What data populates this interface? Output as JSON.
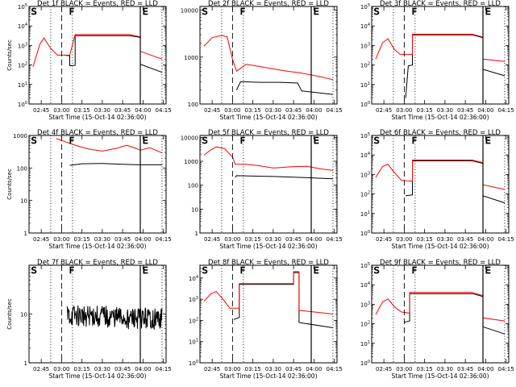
{
  "chart_data": [
    {
      "type": "line",
      "title": "Det 1f BLACK = Events, RED = LLD",
      "ylabel": "Counts/sec",
      "xlabel": "Start Time (15-Oct-14 02:36:00)",
      "x_ticks": [
        "02:45",
        "03:00",
        "03:15",
        "03:30",
        "03:45",
        "04:00",
        "04:15"
      ],
      "y_ticks": [
        "10^0",
        "10^1",
        "10^2",
        "10^3",
        "10^4",
        "10^5"
      ],
      "ylim": [
        1,
        100000
      ],
      "y_scale": "log",
      "markers": [
        "S",
        "F",
        "E"
      ],
      "series": [
        {
          "color": "#000000",
          "points": [
            [
              "03:02",
              320
            ],
            [
              "03:06",
              300
            ],
            [
              "03:06",
              90
            ],
            [
              "03:10",
              95
            ],
            [
              "03:10",
              3200
            ],
            [
              "03:50",
              3200
            ],
            [
              "03:58",
              2600
            ],
            [
              "03:58",
              110
            ],
            [
              "04:14",
              42
            ]
          ]
        },
        {
          "color": "#ff0000",
          "points": [
            [
              "02:39",
              80
            ],
            [
              "02:44",
              1200
            ],
            [
              "02:47",
              2400
            ],
            [
              "02:52",
              700
            ],
            [
              "02:57",
              320
            ],
            [
              "03:06",
              320
            ],
            [
              "03:10",
              3600
            ],
            [
              "03:50",
              3600
            ],
            [
              "03:58",
              2800
            ],
            [
              "03:58",
              500
            ],
            [
              "04:14",
              200
            ]
          ]
        }
      ]
    },
    {
      "type": "line",
      "title": "Det 2f BLACK = Events, RED = LLD",
      "ylabel": "",
      "xlabel": "Start Time (15-Oct-14 02:36:00)",
      "x_ticks": [
        "02:45",
        "03:00",
        "03:15",
        "03:30",
        "03:45",
        "04:00",
        "04:15"
      ],
      "y_ticks": [
        "100",
        "1000",
        "10000"
      ],
      "ylim": [
        100,
        12000
      ],
      "y_scale": "log",
      "markers": [
        "S",
        "F",
        "E"
      ],
      "series": [
        {
          "color": "#000000",
          "points": [
            [
              "03:03",
              200
            ],
            [
              "03:06",
              300
            ],
            [
              "03:20",
              290
            ],
            [
              "03:35",
              290
            ],
            [
              "03:48",
              280
            ],
            [
              "03:51",
              190
            ],
            [
              "04:14",
              160
            ]
          ]
        },
        {
          "color": "#ff0000",
          "points": [
            [
              "02:39",
              1700
            ],
            [
              "02:45",
              2600
            ],
            [
              "02:52",
              2900
            ],
            [
              "02:56",
              2700
            ],
            [
              "03:00",
              900
            ],
            [
              "03:03",
              500
            ],
            [
              "03:10",
              700
            ],
            [
              "03:20",
              630
            ],
            [
              "03:30",
              560
            ],
            [
              "03:40",
              500
            ],
            [
              "03:50",
              460
            ],
            [
              "04:05",
              380
            ],
            [
              "04:14",
              330
            ]
          ]
        }
      ]
    },
    {
      "type": "line",
      "title": "Det 3f BLACK = Events, RED = LLD",
      "ylabel": "",
      "xlabel": "Start Time (15-Oct-14 02:36:00)",
      "x_ticks": [
        "02:45",
        "03:00",
        "03:15",
        "03:30",
        "03:45",
        "04:00",
        "04:15"
      ],
      "y_ticks": [
        "10^0",
        "10^1",
        "10^2",
        "10^3",
        "10^4",
        "10^5"
      ],
      "ylim": [
        1,
        100000
      ],
      "y_scale": "log",
      "markers": [
        "S",
        "F",
        "E"
      ],
      "series": [
        {
          "color": "#000000",
          "points": [
            [
              "03:01",
              2
            ],
            [
              "03:03",
              90
            ],
            [
              "03:06",
              100
            ],
            [
              "03:06",
              3500
            ],
            [
              "03:50",
              3500
            ],
            [
              "03:58",
              2500
            ],
            [
              "03:58",
              60
            ],
            [
              "04:14",
              28
            ]
          ]
        },
        {
          "color": "#ff0000",
          "points": [
            [
              "02:39",
              200
            ],
            [
              "02:44",
              1400
            ],
            [
              "02:48",
              2200
            ],
            [
              "02:53",
              600
            ],
            [
              "02:57",
              350
            ],
            [
              "03:06",
              350
            ],
            [
              "03:06",
              3800
            ],
            [
              "03:50",
              3800
            ],
            [
              "03:58",
              2700
            ],
            [
              "03:58",
              200
            ],
            [
              "04:14",
              150
            ]
          ]
        }
      ]
    },
    {
      "type": "line",
      "title": "Det 4f BLACK = Events, RED = LLD",
      "ylabel": "Counts/sec",
      "xlabel": "Start Time (15-Oct-14 02:36:00)",
      "x_ticks": [
        "02:45",
        "03:00",
        "03:15",
        "03:30",
        "03:45",
        "04:00",
        "04:15"
      ],
      "y_ticks": [
        "1",
        "10",
        "100",
        "1000"
      ],
      "ylim": [
        1,
        1000
      ],
      "y_scale": "log",
      "markers": [
        "S",
        "F",
        "E"
      ],
      "series": [
        {
          "color": "#000000",
          "points": [
            [
              "03:06",
              120
            ],
            [
              "03:15",
              135
            ],
            [
              "03:30",
              138
            ],
            [
              "03:45",
              130
            ],
            [
              "03:57",
              125
            ],
            [
              "03:59",
              125
            ],
            [
              "04:14",
              125
            ]
          ]
        },
        {
          "color": "#ff0000",
          "points": [
            [
              "02:56",
              800
            ],
            [
              "03:00",
              700
            ],
            [
              "03:10",
              500
            ],
            [
              "03:20",
              380
            ],
            [
              "03:30",
              330
            ],
            [
              "03:40",
              400
            ],
            [
              "03:48",
              500
            ],
            [
              "03:55",
              400
            ],
            [
              "03:58",
              350
            ],
            [
              "04:05",
              420
            ],
            [
              "04:14",
              290
            ]
          ]
        }
      ]
    },
    {
      "type": "line",
      "title": "Det 5f BLACK = Events, RED = LLD",
      "ylabel": "",
      "xlabel": "Start Time (15-Oct-14 02:36:00)",
      "x_ticks": [
        "02:45",
        "03:00",
        "03:15",
        "03:30",
        "03:45",
        "04:00",
        "04:15"
      ],
      "y_ticks": [
        "1",
        "10",
        "100",
        "1000",
        "10000"
      ],
      "ylim": [
        1,
        12000
      ],
      "y_scale": "log",
      "markers": [
        "S",
        "F",
        "E"
      ],
      "series": [
        {
          "color": "#000000",
          "points": [
            [
              "03:02",
              210
            ],
            [
              "03:03",
              250
            ],
            [
              "03:15",
              240
            ],
            [
              "03:30",
              230
            ],
            [
              "03:45",
              215
            ],
            [
              "04:00",
              200
            ],
            [
              "04:14",
              185
            ]
          ]
        },
        {
          "color": "#ff0000",
          "points": [
            [
              "02:39",
              1800
            ],
            [
              "02:44",
              3000
            ],
            [
              "02:48",
              4000
            ],
            [
              "02:54",
              3400
            ],
            [
              "03:00",
              1500
            ],
            [
              "03:02",
              750
            ],
            [
              "03:10",
              750
            ],
            [
              "03:20",
              650
            ],
            [
              "03:30",
              520
            ],
            [
              "03:45",
              600
            ],
            [
              "03:55",
              620
            ],
            [
              "04:05",
              480
            ],
            [
              "04:14",
              420
            ]
          ]
        }
      ]
    },
    {
      "type": "line",
      "title": "Det 6f BLACK = Events, RED = LLD",
      "ylabel": "",
      "xlabel": "Start Time (15-Oct-14 02:36:00)",
      "x_ticks": [
        "02:45",
        "03:00",
        "03:15",
        "03:30",
        "03:45",
        "04:00",
        "04:15"
      ],
      "y_ticks": [
        "10^0",
        "10^1",
        "10^2",
        "10^3",
        "10^4",
        "10^5"
      ],
      "ylim": [
        1,
        100000
      ],
      "y_scale": "log",
      "markers": [
        "S",
        "F",
        "E"
      ],
      "series": [
        {
          "color": "#000000",
          "points": [
            [
              "03:01",
              80
            ],
            [
              "03:06",
              90
            ],
            [
              "03:06",
              5000
            ],
            [
              "03:50",
              5000
            ],
            [
              "03:58",
              3700
            ],
            [
              "03:58",
              80
            ],
            [
              "04:14",
              35
            ]
          ]
        },
        {
          "color": "#ff0000",
          "points": [
            [
              "02:39",
              700
            ],
            [
              "02:44",
              2600
            ],
            [
              "02:48",
              3300
            ],
            [
              "02:53",
              1200
            ],
            [
              "02:58",
              500
            ],
            [
              "03:06",
              450
            ],
            [
              "03:06",
              5500
            ],
            [
              "03:50",
              5500
            ],
            [
              "03:58",
              4000
            ],
            [
              "03:58",
              300
            ],
            [
              "04:14",
              170
            ]
          ]
        }
      ]
    },
    {
      "type": "line",
      "title": "Det 7f BLACK = Events, RED = LLD",
      "ylabel": "Counts/sec",
      "xlabel": "Start Time (15-Oct-14 02:36:00)",
      "x_ticks": [
        "02:45",
        "03:00",
        "03:15",
        "03:30",
        "03:45",
        "04:00",
        "04:15"
      ],
      "y_ticks": [
        "1",
        "10"
      ],
      "ylim": [
        1,
        100
      ],
      "y_scale": "log",
      "markers": [
        "S",
        "F",
        "E"
      ],
      "series": [
        {
          "color": "#000000",
          "noisy": true,
          "points": [
            [
              "03:04",
              9
            ],
            [
              "03:15",
              9
            ],
            [
              "03:30",
              9
            ],
            [
              "03:45",
              8
            ],
            [
              "04:00",
              8
            ],
            [
              "04:14",
              8
            ]
          ]
        }
      ]
    },
    {
      "type": "line",
      "title": "Det 8f BLACK = Events, RED = LLD",
      "ylabel": "",
      "xlabel": "Start Time (15-Oct-14 02:36:00)",
      "x_ticks": [
        "02:45",
        "03:00",
        "03:15",
        "03:30",
        "03:45",
        "04:00",
        "04:15"
      ],
      "y_ticks": [
        "10^0",
        "10^1",
        "10^2",
        "10^3",
        "10^4"
      ],
      "ylim": [
        1,
        40000
      ],
      "y_scale": "log",
      "markers": [
        "S",
        "F",
        "E"
      ],
      "series": [
        {
          "color": "#000000",
          "points": [
            [
              "03:01",
              110
            ],
            [
              "03:05",
              140
            ],
            [
              "03:05",
              5000
            ],
            [
              "03:45",
              5000
            ],
            [
              "03:45",
              18000
            ],
            [
              "03:49",
              18000
            ],
            [
              "03:49",
              80
            ],
            [
              "04:14",
              45
            ]
          ]
        },
        {
          "color": "#ff0000",
          "points": [
            [
              "02:39",
              800
            ],
            [
              "02:44",
              1800
            ],
            [
              "02:48",
              2300
            ],
            [
              "02:53",
              1000
            ],
            [
              "02:58",
              380
            ],
            [
              "03:05",
              380
            ],
            [
              "03:05",
              5500
            ],
            [
              "03:45",
              5500
            ],
            [
              "03:45",
              20000
            ],
            [
              "03:49",
              20000
            ],
            [
              "03:49",
              300
            ],
            [
              "04:14",
              200
            ]
          ]
        }
      ]
    },
    {
      "type": "line",
      "title": "Det 9f BLACK = Events, RED = LLD",
      "ylabel": "",
      "xlabel": "Start Time (15-Oct-14 02:36:00)",
      "x_ticks": [
        "02:45",
        "03:00",
        "03:15",
        "03:30",
        "03:45",
        "04:00",
        "04:15"
      ],
      "y_ticks": [
        "10^0",
        "10^1",
        "10^2",
        "10^3",
        "10^4",
        "10^5"
      ],
      "ylim": [
        1,
        100000
      ],
      "y_scale": "log",
      "markers": [
        "S",
        "F",
        "E"
      ],
      "series": [
        {
          "color": "#000000",
          "points": [
            [
              "03:00",
              120
            ],
            [
              "03:04",
              140
            ],
            [
              "03:04",
              3500
            ],
            [
              "03:50",
              3500
            ],
            [
              "03:58",
              2500
            ],
            [
              "03:58",
              70
            ],
            [
              "04:14",
              30
            ]
          ]
        },
        {
          "color": "#ff0000",
          "points": [
            [
              "02:39",
              300
            ],
            [
              "02:44",
              1300
            ],
            [
              "02:48",
              1900
            ],
            [
              "02:53",
              700
            ],
            [
              "02:58",
              400
            ],
            [
              "03:04",
              350
            ],
            [
              "03:04",
              4000
            ],
            [
              "03:50",
              4000
            ],
            [
              "03:58",
              2800
            ],
            [
              "03:58",
              200
            ],
            [
              "04:14",
              140
            ]
          ]
        }
      ]
    }
  ]
}
